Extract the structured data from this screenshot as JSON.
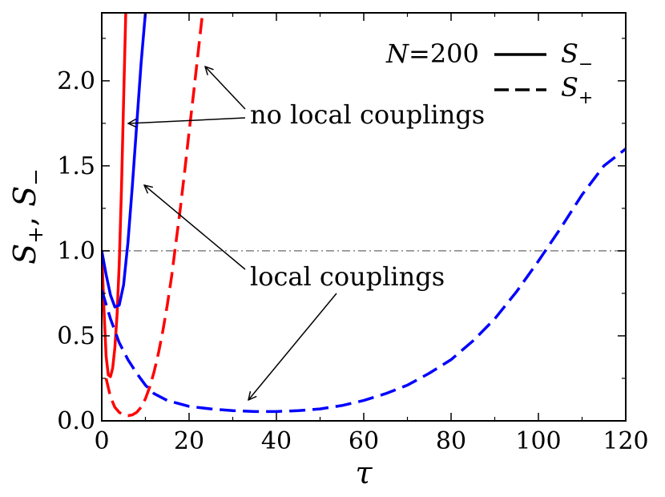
{
  "chart_data": {
    "type": "line",
    "title": "",
    "xlabel": "τ",
    "ylabel": {
      "s1": "S",
      "sub1": "+",
      "sep": ", ",
      "s2": "S",
      "sub2": "−"
    },
    "xlim": [
      0,
      120
    ],
    "ylim": [
      0,
      2.4
    ],
    "xticks": [
      0,
      20,
      40,
      60,
      80,
      100,
      120
    ],
    "xtick_labels": [
      "0",
      "20",
      "40",
      "60",
      "80",
      "100",
      "120"
    ],
    "yticks": [
      0,
      0.5,
      1.0,
      1.5,
      2.0
    ],
    "ytick_labels": [
      "0.0",
      "0.5",
      "1.0",
      "1.5",
      "2.0"
    ],
    "grid": false,
    "reference_line": {
      "y": 1.0,
      "color": "#808080",
      "style": "dash-dot"
    },
    "legend": {
      "placement": "top-right",
      "note": {
        "symbol": "N",
        "eq": "=",
        "value": "200"
      },
      "entries": [
        {
          "symbol": "S",
          "sub": "−",
          "style": "solid"
        },
        {
          "symbol": "S",
          "sub": "+",
          "style": "dashed"
        }
      ]
    },
    "annotations": [
      {
        "text": "no local couplings",
        "targets": [
          [
            5,
            1.75
          ],
          [
            24,
            2.08
          ]
        ]
      },
      {
        "text": "local couplings",
        "targets": [
          [
            8,
            1.38
          ],
          [
            33,
            0.12
          ]
        ]
      }
    ],
    "series": [
      {
        "id": "red-solid",
        "color": "#ff0000",
        "style": "solid",
        "points": [
          [
            0,
            1.0
          ],
          [
            0.5,
            0.66
          ],
          [
            1,
            0.38
          ],
          [
            1.5,
            0.27
          ],
          [
            2,
            0.26
          ],
          [
            2.5,
            0.31
          ],
          [
            3,
            0.43
          ],
          [
            3.5,
            0.62
          ],
          [
            4,
            0.92
          ],
          [
            4.5,
            1.35
          ],
          [
            5,
            1.88
          ],
          [
            5.5,
            2.4
          ]
        ]
      },
      {
        "id": "blue-solid",
        "color": "#0000ff",
        "style": "solid",
        "points": [
          [
            0,
            1.0
          ],
          [
            1,
            0.86
          ],
          [
            2,
            0.74
          ],
          [
            3,
            0.67
          ],
          [
            4,
            0.68
          ],
          [
            5,
            0.8
          ],
          [
            6,
            1.05
          ],
          [
            7,
            1.38
          ],
          [
            8,
            1.74
          ],
          [
            9,
            2.1
          ],
          [
            10,
            2.4
          ]
        ]
      },
      {
        "id": "red-dashed",
        "color": "#ff0000",
        "style": "dashed",
        "points": [
          [
            1,
            0.25
          ],
          [
            2,
            0.14
          ],
          [
            3,
            0.08
          ],
          [
            4,
            0.05
          ],
          [
            5,
            0.035
          ],
          [
            6,
            0.03
          ],
          [
            7,
            0.035
          ],
          [
            8,
            0.05
          ],
          [
            9,
            0.08
          ],
          [
            10,
            0.13
          ],
          [
            11,
            0.2
          ],
          [
            12,
            0.29
          ],
          [
            13,
            0.4
          ],
          [
            14,
            0.53
          ],
          [
            15,
            0.68
          ],
          [
            16,
            0.85
          ],
          [
            17,
            1.05
          ],
          [
            18,
            1.25
          ],
          [
            19,
            1.47
          ],
          [
            20,
            1.7
          ],
          [
            21,
            1.92
          ],
          [
            22,
            2.15
          ],
          [
            23,
            2.38
          ]
        ]
      },
      {
        "id": "blue-dashed",
        "color": "#0000ff",
        "style": "dashed",
        "points": [
          [
            0,
            0.77
          ],
          [
            2,
            0.6
          ],
          [
            4,
            0.46
          ],
          [
            6,
            0.36
          ],
          [
            8,
            0.28
          ],
          [
            10,
            0.21
          ],
          [
            12,
            0.16
          ],
          [
            15,
            0.12
          ],
          [
            20,
            0.085
          ],
          [
            25,
            0.07
          ],
          [
            30,
            0.06
          ],
          [
            35,
            0.055
          ],
          [
            40,
            0.055
          ],
          [
            45,
            0.06
          ],
          [
            50,
            0.07
          ],
          [
            55,
            0.09
          ],
          [
            60,
            0.12
          ],
          [
            65,
            0.16
          ],
          [
            70,
            0.21
          ],
          [
            75,
            0.28
          ],
          [
            80,
            0.36
          ],
          [
            85,
            0.47
          ],
          [
            90,
            0.6
          ],
          [
            95,
            0.76
          ],
          [
            100,
            0.94
          ],
          [
            105,
            1.13
          ],
          [
            110,
            1.33
          ],
          [
            115,
            1.5
          ],
          [
            120,
            1.6
          ]
        ]
      }
    ]
  }
}
